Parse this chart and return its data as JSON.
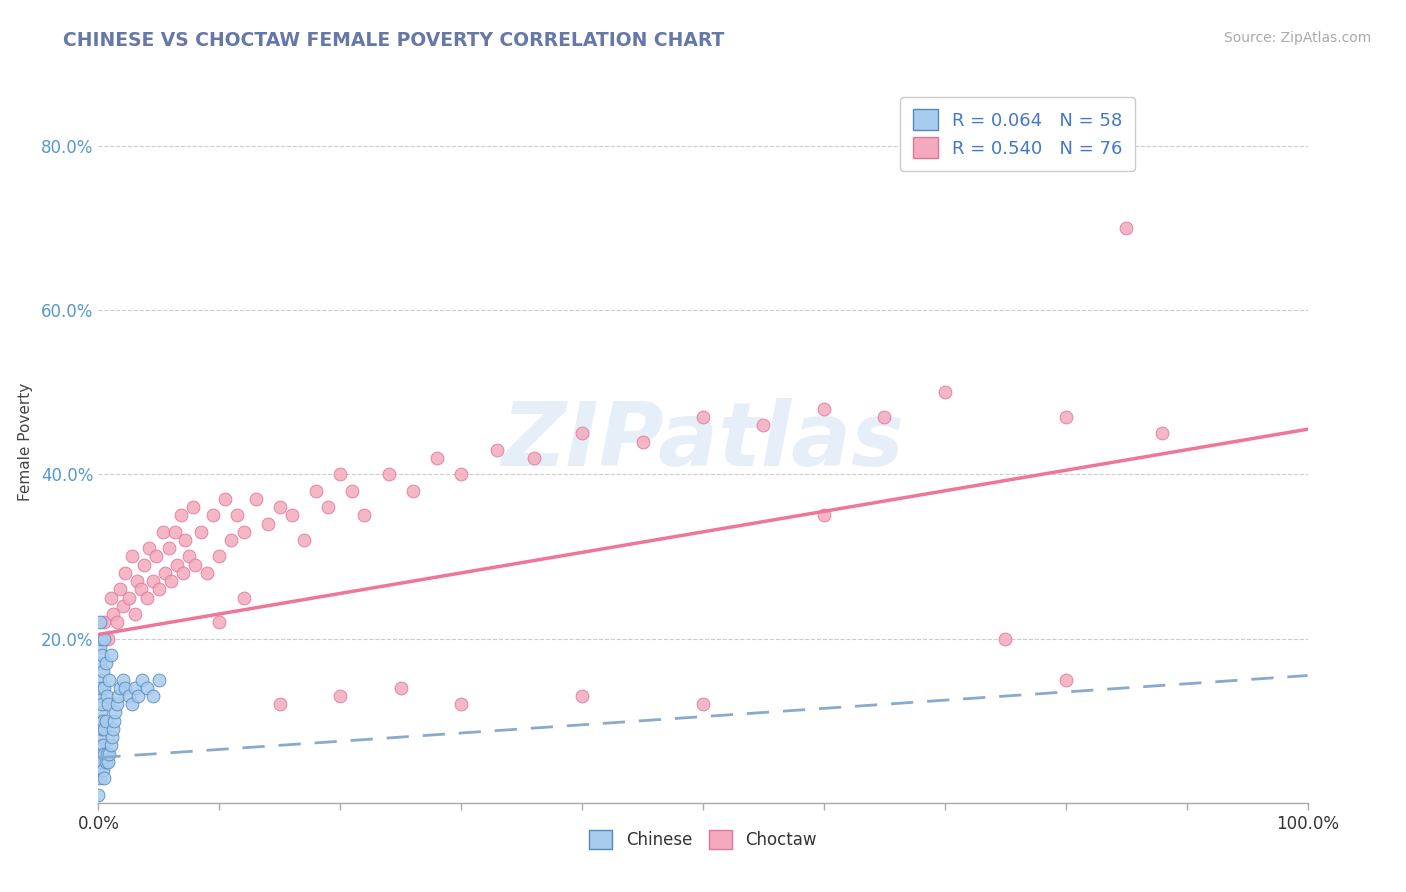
{
  "title": "CHINESE VS CHOCTAW FEMALE POVERTY CORRELATION CHART",
  "source": "Source: ZipAtlas.com",
  "ylabel": "Female Poverty",
  "xlim": [
    0,
    1.0
  ],
  "ylim": [
    0,
    0.88
  ],
  "xtick_positions": [
    0.0,
    0.1,
    0.2,
    0.3,
    0.4,
    0.5,
    0.6,
    0.7,
    0.8,
    0.9,
    1.0
  ],
  "xticklabels": [
    "0.0%",
    "",
    "",
    "",
    "",
    "",
    "",
    "",
    "",
    "",
    "100.0%"
  ],
  "ytick_positions": [
    0.0,
    0.2,
    0.4,
    0.6,
    0.8
  ],
  "yticklabels": [
    "",
    "20.0%",
    "40.0%",
    "60.0%",
    "80.0%"
  ],
  "chinese_color": "#A8CCEE",
  "choctaw_color": "#F4AABC",
  "chinese_edge_color": "#5588BB",
  "choctaw_edge_color": "#DD7799",
  "R_chinese": 0.064,
  "N_chinese": 58,
  "R_choctaw": 0.54,
  "N_choctaw": 76,
  "watermark": "ZIPatlas",
  "background_color": "#FFFFFF",
  "grid_color": "#CCCCCC",
  "title_color": "#6677AA",
  "ytick_label_color": "#5599CC",
  "xtick_label_color": "#333333",
  "legend_text_color": "#4477CC",
  "axis_label_color": "#444444",
  "chinese_line_color": "#88AACC",
  "choctaw_line_color": "#EE7799",
  "chinese_x": [
    0.001,
    0.001,
    0.001,
    0.001,
    0.001,
    0.001,
    0.001,
    0.001,
    0.001,
    0.001,
    0.002,
    0.002,
    0.002,
    0.002,
    0.002,
    0.002,
    0.003,
    0.003,
    0.003,
    0.003,
    0.004,
    0.004,
    0.004,
    0.004,
    0.005,
    0.005,
    0.005,
    0.005,
    0.005,
    0.006,
    0.006,
    0.006,
    0.007,
    0.007,
    0.008,
    0.008,
    0.009,
    0.009,
    0.01,
    0.01,
    0.011,
    0.012,
    0.013,
    0.014,
    0.015,
    0.016,
    0.018,
    0.02,
    0.022,
    0.025,
    0.028,
    0.03,
    0.033,
    0.036,
    0.04,
    0.045,
    0.05,
    0.0
  ],
  "chinese_y": [
    0.03,
    0.05,
    0.07,
    0.09,
    0.1,
    0.13,
    0.15,
    0.17,
    0.19,
    0.22,
    0.04,
    0.06,
    0.08,
    0.11,
    0.14,
    0.2,
    0.05,
    0.09,
    0.12,
    0.18,
    0.04,
    0.07,
    0.1,
    0.16,
    0.03,
    0.06,
    0.09,
    0.14,
    0.2,
    0.05,
    0.1,
    0.17,
    0.06,
    0.13,
    0.05,
    0.12,
    0.06,
    0.15,
    0.07,
    0.18,
    0.08,
    0.09,
    0.1,
    0.11,
    0.12,
    0.13,
    0.14,
    0.15,
    0.14,
    0.13,
    0.12,
    0.14,
    0.13,
    0.15,
    0.14,
    0.13,
    0.15,
    0.01
  ],
  "choctaw_x": [
    0.005,
    0.008,
    0.01,
    0.012,
    0.015,
    0.018,
    0.02,
    0.022,
    0.025,
    0.028,
    0.03,
    0.032,
    0.035,
    0.038,
    0.04,
    0.042,
    0.045,
    0.048,
    0.05,
    0.053,
    0.055,
    0.058,
    0.06,
    0.063,
    0.065,
    0.068,
    0.07,
    0.072,
    0.075,
    0.078,
    0.08,
    0.085,
    0.09,
    0.095,
    0.1,
    0.105,
    0.11,
    0.115,
    0.12,
    0.13,
    0.14,
    0.15,
    0.16,
    0.17,
    0.18,
    0.19,
    0.2,
    0.21,
    0.22,
    0.24,
    0.26,
    0.28,
    0.3,
    0.33,
    0.36,
    0.4,
    0.45,
    0.5,
    0.55,
    0.6,
    0.65,
    0.7,
    0.75,
    0.8,
    0.85,
    0.88,
    0.1,
    0.12,
    0.15,
    0.2,
    0.25,
    0.3,
    0.4,
    0.5,
    0.6,
    0.8
  ],
  "choctaw_y": [
    0.22,
    0.2,
    0.25,
    0.23,
    0.22,
    0.26,
    0.24,
    0.28,
    0.25,
    0.3,
    0.23,
    0.27,
    0.26,
    0.29,
    0.25,
    0.31,
    0.27,
    0.3,
    0.26,
    0.33,
    0.28,
    0.31,
    0.27,
    0.33,
    0.29,
    0.35,
    0.28,
    0.32,
    0.3,
    0.36,
    0.29,
    0.33,
    0.28,
    0.35,
    0.3,
    0.37,
    0.32,
    0.35,
    0.33,
    0.37,
    0.34,
    0.36,
    0.35,
    0.32,
    0.38,
    0.36,
    0.4,
    0.38,
    0.35,
    0.4,
    0.38,
    0.42,
    0.4,
    0.43,
    0.42,
    0.45,
    0.44,
    0.47,
    0.46,
    0.48,
    0.47,
    0.5,
    0.2,
    0.47,
    0.7,
    0.45,
    0.22,
    0.25,
    0.12,
    0.13,
    0.14,
    0.12,
    0.13,
    0.12,
    0.35,
    0.15
  ]
}
